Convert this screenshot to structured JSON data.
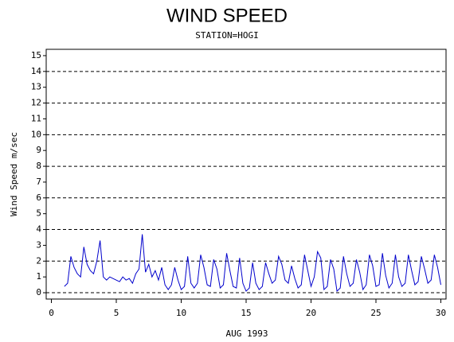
{
  "chart_data": {
    "type": "line",
    "title": "WIND SPEED",
    "subtitle": "STATION=HOGI",
    "y_label": "Wind Speed m/sec",
    "x_label": "AUG 1993",
    "xlim": [
      -0.4,
      30.4
    ],
    "xticks": [
      0,
      5,
      10,
      15,
      20,
      25,
      30
    ],
    "ylim": [
      -0.4,
      15.4
    ],
    "yticks": [
      0,
      1,
      2,
      3,
      4,
      5,
      6,
      7,
      8,
      9,
      10,
      11,
      12,
      13,
      14,
      15
    ],
    "grid_lines": [
      0,
      2,
      4,
      6,
      8,
      10,
      12,
      14
    ],
    "x": [
      1,
      1.25,
      1.5,
      1.75,
      2,
      2.25,
      2.5,
      2.75,
      3,
      3.25,
      3.5,
      3.75,
      4,
      4.25,
      4.5,
      4.75,
      5,
      5.25,
      5.5,
      5.75,
      6,
      6.25,
      6.5,
      6.75,
      7,
      7.25,
      7.5,
      7.75,
      8,
      8.25,
      8.5,
      8.75,
      9,
      9.25,
      9.5,
      9.75,
      10,
      10.25,
      10.5,
      10.75,
      11,
      11.25,
      11.5,
      11.75,
      12,
      12.25,
      12.5,
      12.75,
      13,
      13.25,
      13.5,
      13.75,
      14,
      14.25,
      14.5,
      14.75,
      15,
      15.25,
      15.5,
      15.75,
      16,
      16.25,
      16.5,
      16.75,
      17,
      17.25,
      17.5,
      17.75,
      18,
      18.25,
      18.5,
      18.75,
      19,
      19.25,
      19.5,
      19.75,
      20,
      20.25,
      20.5,
      20.75,
      21,
      21.25,
      21.5,
      21.75,
      22,
      22.25,
      22.5,
      22.75,
      23,
      23.25,
      23.5,
      23.75,
      24,
      24.25,
      24.5,
      24.75,
      25,
      25.25,
      25.5,
      25.75,
      26,
      26.25,
      26.5,
      26.75,
      27,
      27.25,
      27.5,
      27.75,
      28,
      28.25,
      28.5,
      28.75,
      29,
      29.25,
      29.5,
      29.75,
      30
    ],
    "series": [
      {
        "name": "Wind Speed",
        "color": "#0000cc",
        "values": [
          0.4,
          0.6,
          2.3,
          1.6,
          1.2,
          1.0,
          2.9,
          1.8,
          1.4,
          1.2,
          2.0,
          3.3,
          1.0,
          0.8,
          1.0,
          0.9,
          0.8,
          0.7,
          1.0,
          0.8,
          0.9,
          0.6,
          1.2,
          1.5,
          3.7,
          1.3,
          1.8,
          1.0,
          1.4,
          0.8,
          1.6,
          0.5,
          0.2,
          0.5,
          1.6,
          0.8,
          0.2,
          0.4,
          2.3,
          0.6,
          0.3,
          0.6,
          2.4,
          1.6,
          0.5,
          0.4,
          2.1,
          1.5,
          0.3,
          0.5,
          2.5,
          1.4,
          0.4,
          0.3,
          2.2,
          0.6,
          0.1,
          0.3,
          1.9,
          0.6,
          0.2,
          0.4,
          1.9,
          1.2,
          0.6,
          0.8,
          2.3,
          1.8,
          0.8,
          0.6,
          1.7,
          0.9,
          0.3,
          0.5,
          2.4,
          1.4,
          0.4,
          1.0,
          2.6,
          2.2,
          0.2,
          0.4,
          2.1,
          1.5,
          0.1,
          0.3,
          2.3,
          1.2,
          0.4,
          0.6,
          2.1,
          1.3,
          0.2,
          0.5,
          2.4,
          1.7,
          0.4,
          0.5,
          2.5,
          1.1,
          0.3,
          0.6,
          2.4,
          1.0,
          0.4,
          0.6,
          2.4,
          1.4,
          0.5,
          0.7,
          2.3,
          1.5,
          0.6,
          0.8,
          2.4,
          1.6,
          0.5
        ]
      }
    ]
  }
}
